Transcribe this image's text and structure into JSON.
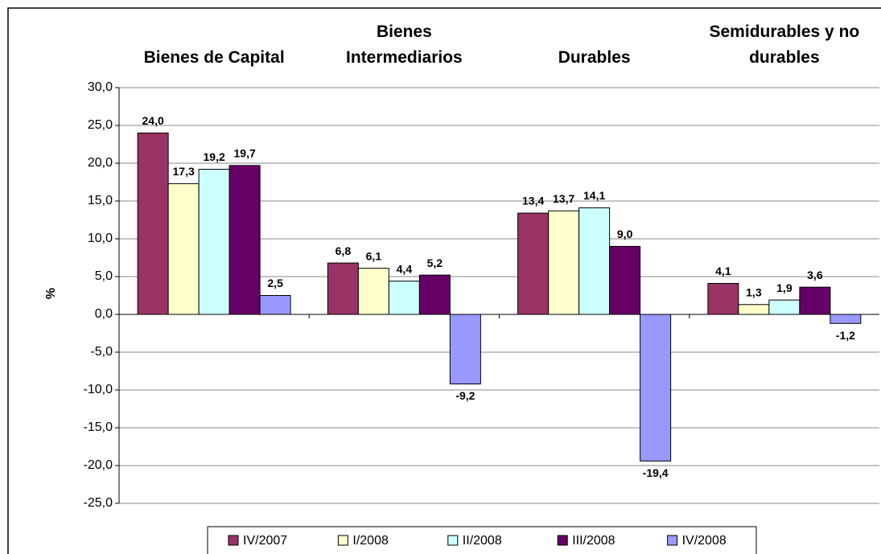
{
  "chart_data": {
    "type": "bar",
    "y_label": "%",
    "categories": [
      "Bienes de Capital",
      "Bienes Intermediarios",
      "Durables",
      "Semidurables y no durables"
    ],
    "series": [
      {
        "name": "IV/2007",
        "color": "#993366",
        "values": [
          24.0,
          6.8,
          13.4,
          4.1
        ],
        "value_labels": [
          "24,0",
          "6,8",
          "13,4",
          "4,1"
        ]
      },
      {
        "name": "I/2008",
        "color": "#FFFFCC",
        "values": [
          17.3,
          6.1,
          13.7,
          1.3
        ],
        "value_labels": [
          "17,3",
          "6,1",
          "13,7",
          "1,3"
        ]
      },
      {
        "name": "II/2008",
        "color": "#CCFFFF",
        "values": [
          19.2,
          4.4,
          14.1,
          1.9
        ],
        "value_labels": [
          "19,2",
          "4,4",
          "14,1",
          "1,9"
        ]
      },
      {
        "name": "III/2008",
        "color": "#660066",
        "values": [
          19.7,
          5.2,
          9.0,
          3.6
        ],
        "value_labels": [
          "19,7",
          "5,2",
          "9,0",
          "3,6"
        ]
      },
      {
        "name": "IV/2008",
        "color": "#9999FF",
        "values": [
          2.5,
          -9.2,
          -19.4,
          -1.2
        ],
        "value_labels": [
          "2,5",
          "-9,2",
          "-19,4",
          "-1,2"
        ]
      }
    ],
    "ylim": [
      -25,
      30
    ],
    "yticks": [
      {
        "value": -25,
        "label": "-25,0"
      },
      {
        "value": -20,
        "label": "-20,0"
      },
      {
        "value": -15,
        "label": "-15,0"
      },
      {
        "value": -10,
        "label": "-10,0"
      },
      {
        "value": -5,
        "label": "-5,0"
      },
      {
        "value": 0,
        "label": "0,0"
      },
      {
        "value": 5,
        "label": "5,0"
      },
      {
        "value": 10,
        "label": "10,0"
      },
      {
        "value": 15,
        "label": "15,0"
      },
      {
        "value": 20,
        "label": "20,0"
      },
      {
        "value": 25,
        "label": "25,0"
      },
      {
        "value": 30,
        "label": "30,0"
      }
    ],
    "grid": true
  }
}
